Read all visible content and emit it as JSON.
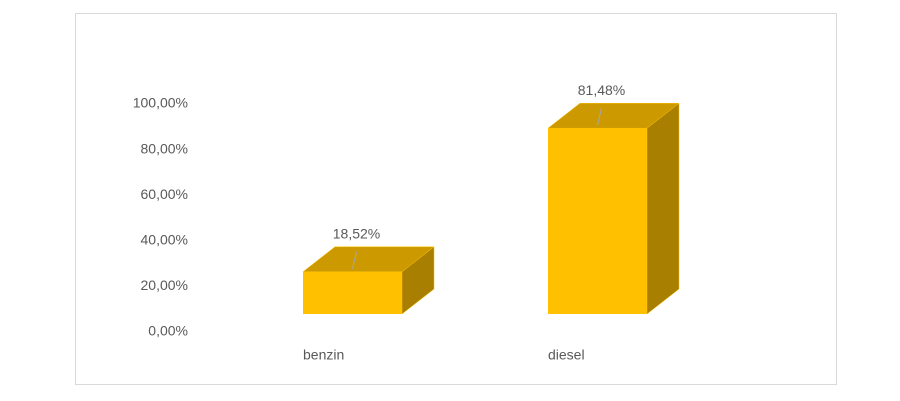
{
  "chart_data": {
    "type": "bar3d",
    "categories": [
      "benzin",
      "diesel"
    ],
    "values": [
      18.52,
      81.48
    ],
    "value_labels": [
      "18,52%",
      "81,48%"
    ],
    "color": "#ffc000",
    "ylim": [
      0,
      100
    ],
    "yticks": [
      {
        "value": 0,
        "label": "0,00%"
      },
      {
        "value": 20,
        "label": "20,00%"
      },
      {
        "value": 40,
        "label": "40,00%"
      },
      {
        "value": 60,
        "label": "60,00%"
      },
      {
        "value": 80,
        "label": "80,00%"
      },
      {
        "value": 100,
        "label": "100,00%"
      }
    ],
    "grid": false
  }
}
